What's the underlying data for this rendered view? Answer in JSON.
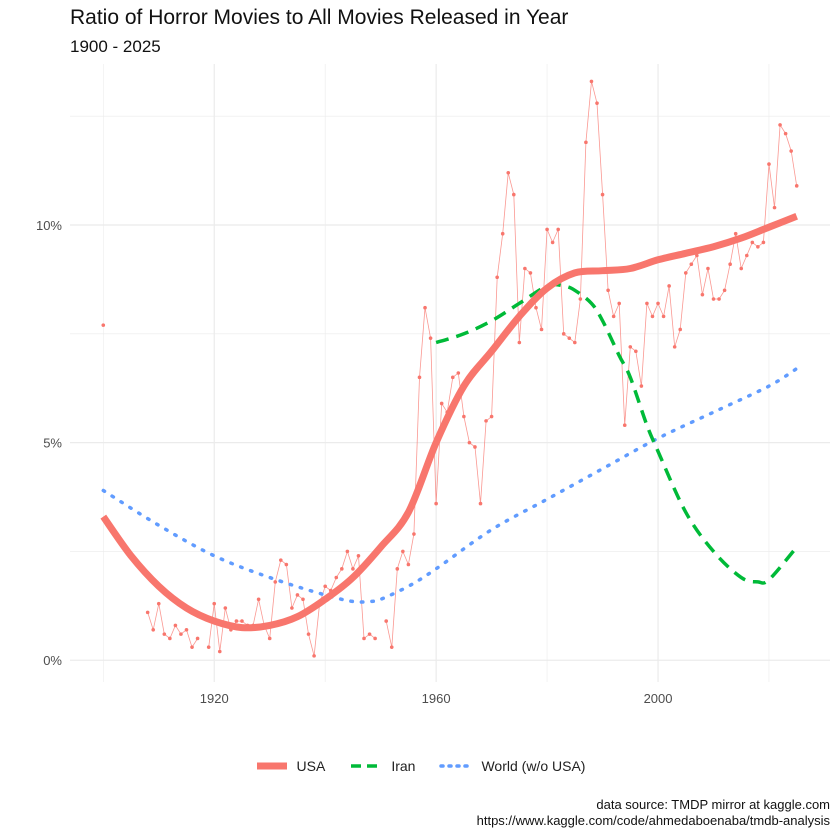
{
  "title": "Ratio of Horror Movies to All Movies Released in Year",
  "subtitle": "1900 - 2025",
  "source_line1": "data source: TMDP mirror at kaggle.com",
  "source_line2": "https://www.kaggle.com/code/ahmedaboenaba/tmdb-analysis",
  "colors": {
    "usa": "#F8766D",
    "iran": "#00BA38",
    "world": "#619CFF",
    "grid": "#EBEBEB"
  },
  "chart_data": {
    "type": "line",
    "title": "Ratio of Horror Movies to All Movies Released in Year",
    "subtitle": "1900 - 2025",
    "xlabel": "",
    "ylabel": "",
    "xlim": [
      1894,
      2031
    ],
    "ylim": [
      -0.5,
      13.7
    ],
    "x_ticks": [
      1920,
      1960,
      2000
    ],
    "x_tick_labels": [
      "1920",
      "1960",
      "2000"
    ],
    "y_ticks": [
      0,
      5,
      10
    ],
    "y_tick_labels": [
      "0%",
      "5%",
      "10%"
    ],
    "legend_position": "bottom",
    "raw_points": {
      "name": "USA yearly ratio (%)",
      "x": [
        1900,
        1908,
        1909,
        1910,
        1911,
        1912,
        1913,
        1914,
        1915,
        1916,
        1917,
        1918,
        1919,
        1920,
        1921,
        1922,
        1923,
        1924,
        1925,
        1926,
        1927,
        1928,
        1929,
        1930,
        1931,
        1932,
        1933,
        1934,
        1935,
        1936,
        1937,
        1938,
        1939,
        1940,
        1941,
        1942,
        1943,
        1944,
        1945,
        1946,
        1947,
        1948,
        1949,
        1950,
        1951,
        1952,
        1953,
        1954,
        1955,
        1956,
        1957,
        1958,
        1959,
        1960,
        1961,
        1962,
        1963,
        1964,
        1965,
        1966,
        1967,
        1968,
        1969,
        1970,
        1971,
        1972,
        1973,
        1974,
        1975,
        1976,
        1977,
        1978,
        1979,
        1980,
        1981,
        1982,
        1983,
        1984,
        1985,
        1986,
        1987,
        1988,
        1989,
        1990,
        1991,
        1992,
        1993,
        1994,
        1995,
        1996,
        1997,
        1998,
        1999,
        2000,
        2001,
        2002,
        2003,
        2004,
        2005,
        2006,
        2007,
        2008,
        2009,
        2010,
        2011,
        2012,
        2013,
        2014,
        2015,
        2016,
        2017,
        2018,
        2019,
        2020,
        2021,
        2022,
        2023,
        2024,
        2025
      ],
      "y": [
        7.7,
        1.1,
        0.7,
        1.3,
        0.6,
        0.5,
        0.8,
        0.6,
        0.7,
        0.3,
        0.5,
        null,
        0.3,
        1.3,
        0.2,
        1.2,
        0.7,
        0.9,
        0.9,
        0.8,
        0.8,
        1.4,
        0.8,
        0.5,
        1.8,
        2.3,
        2.2,
        1.2,
        1.5,
        1.4,
        0.6,
        0.1,
        1.3,
        1.7,
        1.6,
        1.9,
        2.1,
        2.5,
        2.1,
        2.4,
        0.5,
        0.6,
        0.5,
        null,
        0.9,
        0.3,
        2.1,
        2.5,
        2.2,
        2.9,
        6.5,
        8.1,
        7.4,
        3.6,
        5.9,
        5.7,
        6.5,
        6.6,
        5.6,
        5.0,
        4.9,
        3.6,
        5.5,
        5.6,
        8.8,
        9.8,
        11.2,
        10.7,
        7.3,
        9.0,
        8.9,
        8.1,
        7.6,
        9.9,
        9.6,
        9.9,
        7.5,
        7.4,
        7.3,
        8.3,
        11.9,
        13.3,
        12.8,
        10.7,
        8.5,
        7.9,
        8.2,
        5.4,
        7.2,
        7.1,
        6.3,
        8.2,
        7.9,
        8.2,
        7.9,
        8.6,
        7.2,
        7.6,
        8.9,
        9.1,
        9.3,
        8.4,
        9.0,
        8.3,
        8.3,
        8.5,
        9.1,
        9.8,
        9.0,
        9.3,
        9.6,
        9.5,
        9.6,
        11.4,
        10.4,
        12.3,
        12.1,
        11.7,
        10.9
      ]
    },
    "series": [
      {
        "name": "USA",
        "style": "solid",
        "x": [
          1900,
          1905,
          1910,
          1915,
          1920,
          1925,
          1930,
          1935,
          1940,
          1945,
          1950,
          1955,
          1960,
          1965,
          1970,
          1975,
          1980,
          1985,
          1990,
          1995,
          2000,
          2005,
          2010,
          2015,
          2020,
          2025
        ],
        "values": [
          3.3,
          2.4,
          1.7,
          1.2,
          0.9,
          0.75,
          0.8,
          1.0,
          1.4,
          1.9,
          2.6,
          3.4,
          5.0,
          6.3,
          7.1,
          7.9,
          8.55,
          8.9,
          8.95,
          9.0,
          9.2,
          9.35,
          9.5,
          9.7,
          9.95,
          10.2
        ]
      },
      {
        "name": "Iran",
        "style": "dashed",
        "x": [
          1960,
          1965,
          1970,
          1975,
          1980,
          1983,
          1985,
          1988,
          1990,
          1993,
          1995,
          1998,
          2000,
          2005,
          2010,
          2015,
          2018,
          2020,
          2025
        ],
        "values": [
          7.3,
          7.5,
          7.8,
          8.2,
          8.6,
          8.6,
          8.5,
          8.2,
          7.8,
          7.0,
          6.5,
          5.4,
          4.8,
          3.4,
          2.5,
          1.9,
          1.8,
          1.85,
          2.6
        ]
      },
      {
        "name": "World (w/o USA)",
        "style": "dotted",
        "x": [
          1900,
          1910,
          1920,
          1930,
          1940,
          1945,
          1948,
          1950,
          1955,
          1960,
          1970,
          1980,
          1990,
          2000,
          2010,
          2020,
          2025
        ],
        "values": [
          3.9,
          3.1,
          2.4,
          1.9,
          1.5,
          1.35,
          1.35,
          1.4,
          1.7,
          2.1,
          3.0,
          3.7,
          4.4,
          5.1,
          5.7,
          6.3,
          6.7
        ]
      }
    ]
  },
  "legend": {
    "items": [
      "USA",
      "Iran",
      "World (w/o USA)"
    ]
  }
}
